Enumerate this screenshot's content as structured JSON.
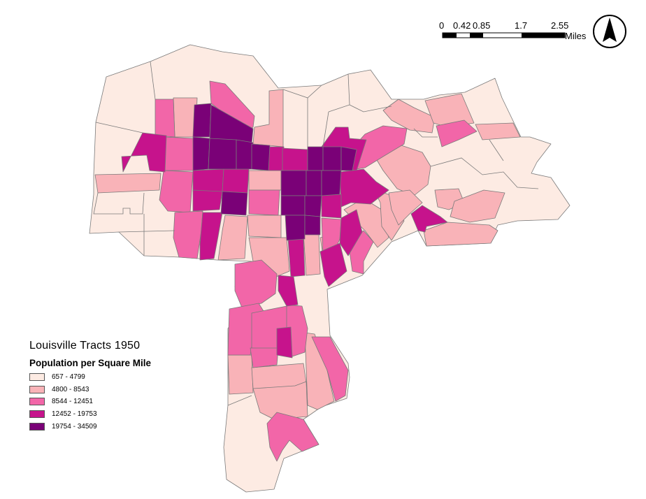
{
  "map": {
    "title": "Louisville Tracts 1950",
    "variable": "Population per Square Mile"
  },
  "legend": {
    "classes": [
      {
        "label": "657 - 4799",
        "color": "#fdebe3"
      },
      {
        "label": "4800 - 8543",
        "color": "#f9b3b8"
      },
      {
        "label": "8544 - 12451",
        "color": "#f266a8"
      },
      {
        "label": "12452 - 19753",
        "color": "#c6138c"
      },
      {
        "label": "19754 - 34509",
        "color": "#7a0177"
      }
    ]
  },
  "scale_bar": {
    "ticks": [
      "0",
      "0.42",
      "0.85",
      "1.7",
      "2.55"
    ],
    "unit": "Miles"
  },
  "north_arrow": {
    "icon": "north-arrow-icon"
  }
}
